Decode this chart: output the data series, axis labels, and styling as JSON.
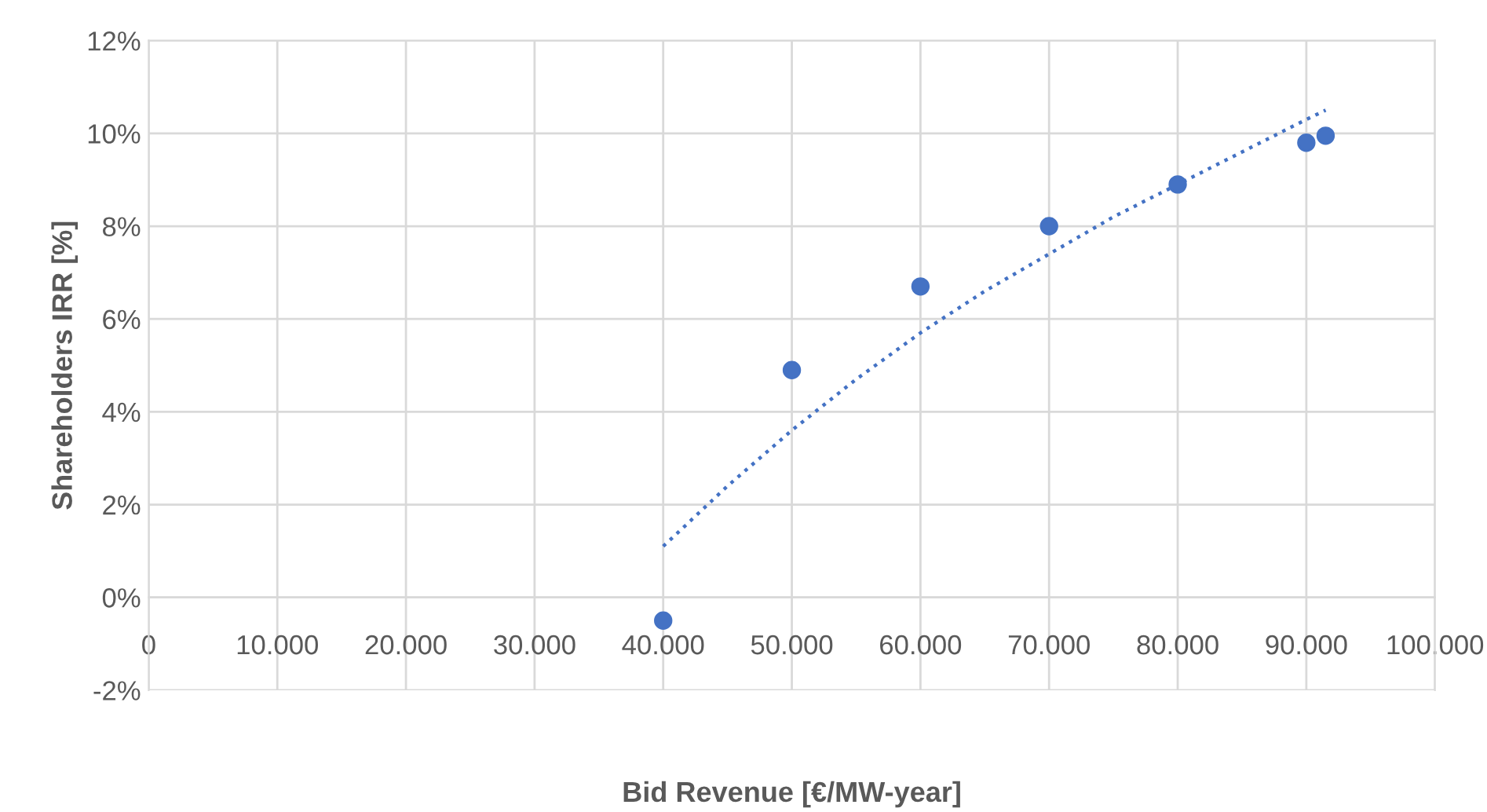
{
  "chart_data": {
    "type": "scatter",
    "xlabel": "Bid Revenue [€/MW-year]",
    "ylabel": "Shareholders IRR [%]",
    "series": [
      {
        "color": "#4472c4",
        "marker": "circle",
        "x": [
          40000,
          50000,
          60000,
          70000,
          80000,
          90000,
          91500
        ],
        "values": [
          -0.5,
          4.9,
          6.7,
          8.0,
          8.9,
          9.8,
          9.95
        ]
      },
      {
        "type": "line",
        "color": "#4472c4",
        "marker": "none",
        "line_style": "dotted",
        "x": [
          40000,
          45000,
          50000,
          55000,
          60000,
          65000,
          70000,
          75000,
          80000,
          85000,
          90000,
          91500
        ],
        "values": [
          1.1,
          2.4,
          3.6,
          4.7,
          5.7,
          6.6,
          7.4,
          8.2,
          8.9,
          9.6,
          10.3,
          10.5
        ]
      }
    ],
    "xlim": [
      0,
      100000
    ],
    "ylim": [
      -2,
      12
    ],
    "xticks": [
      0,
      {
        "value": 10000,
        "label": "10.000"
      },
      {
        "value": 20000,
        "label": "20.000"
      },
      {
        "value": 30000,
        "label": "30.000"
      },
      {
        "value": 40000,
        "label": "40.000"
      },
      {
        "value": 50000,
        "label": "50.000"
      },
      {
        "value": 60000,
        "label": "60.000"
      },
      {
        "value": 70000,
        "label": "70.000"
      },
      {
        "value": 80000,
        "label": "80.000"
      },
      {
        "value": 90000,
        "label": "90.000"
      },
      {
        "value": 100000,
        "label": "100.000"
      }
    ],
    "yticks": [
      {
        "value": -2,
        "label": "-2%"
      },
      {
        "value": 0,
        "label": "0%"
      },
      {
        "value": 2,
        "label": "2%"
      },
      {
        "value": 4,
        "label": "4%"
      },
      {
        "value": 6,
        "label": "6%"
      },
      {
        "value": 8,
        "label": "8%"
      },
      {
        "value": 10,
        "label": "10%"
      },
      {
        "value": 12,
        "label": "12%"
      }
    ],
    "grid": true,
    "legend": false
  }
}
